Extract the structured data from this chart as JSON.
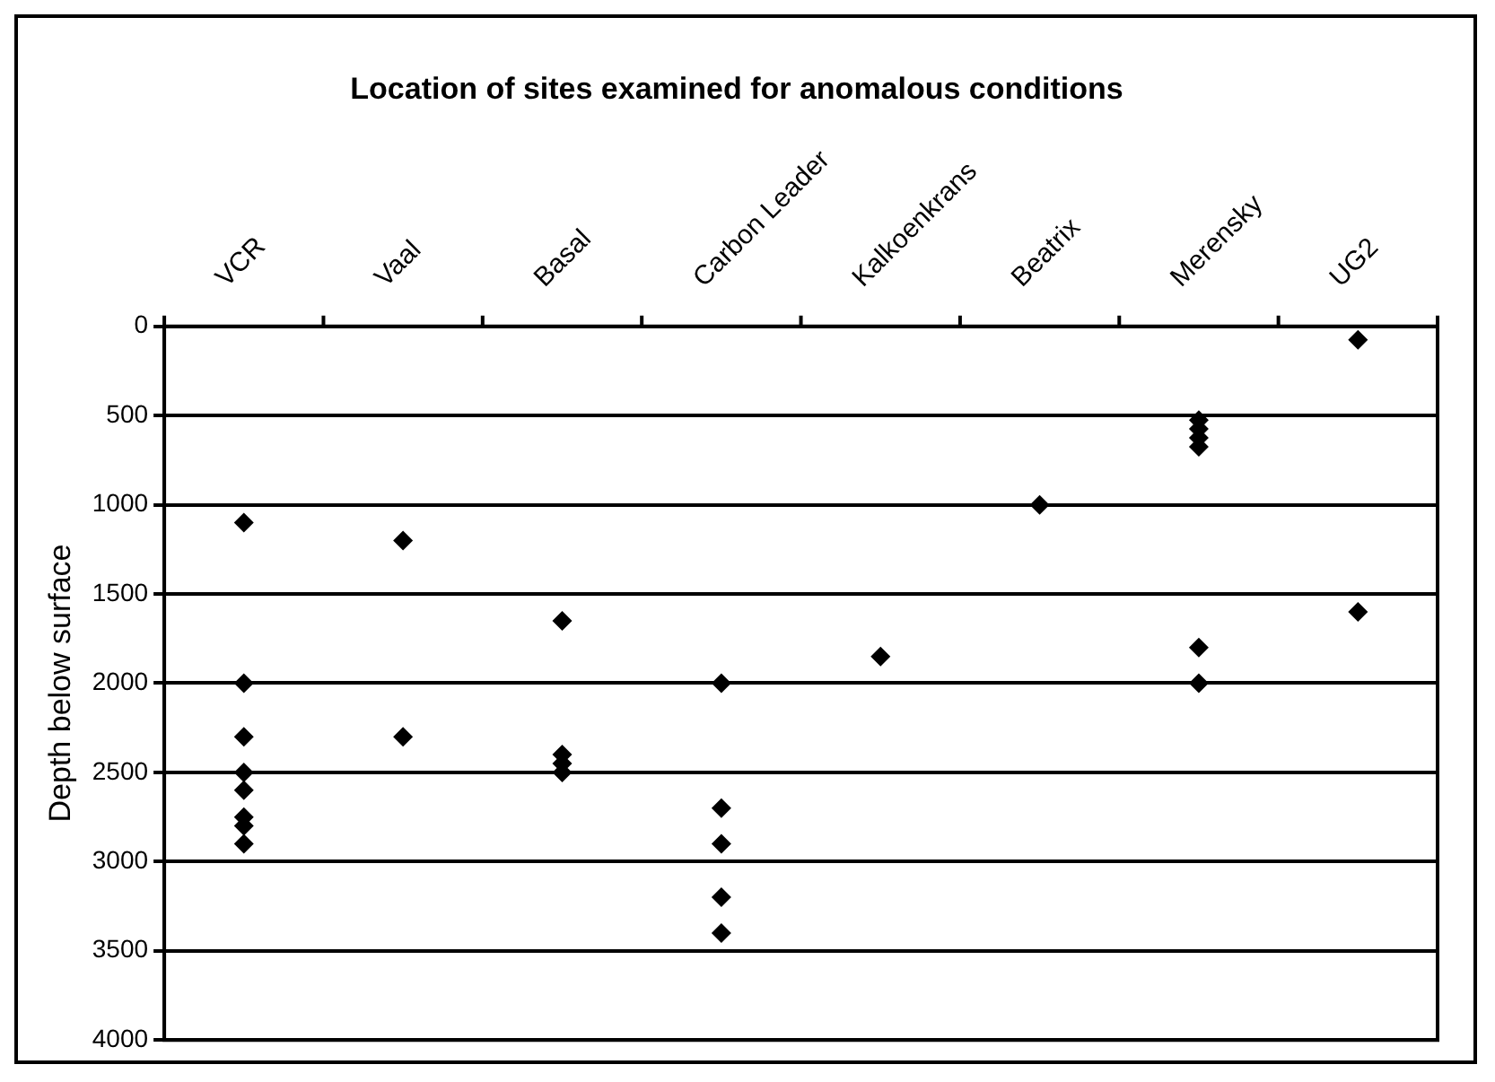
{
  "chart_data": {
    "type": "scatter",
    "title": "Location of sites examined for anomalous conditions",
    "ylabel": "Depth below surface",
    "categories": [
      "VCR",
      "Vaal",
      "Basal",
      "Carbon Leader",
      "Kalkoenkrans",
      "Beatrix",
      "Merensky",
      "UG2"
    ],
    "series": [
      {
        "color": "#000000",
        "x": [
          "VCR",
          "VCR",
          "VCR",
          "VCR",
          "VCR",
          "VCR",
          "VCR",
          "VCR",
          "Vaal",
          "Vaal",
          "Basal",
          "Basal",
          "Basal",
          "Basal",
          "Carbon Leader",
          "Carbon Leader",
          "Carbon Leader",
          "Carbon Leader",
          "Carbon Leader",
          "Kalkoenkrans",
          "Beatrix",
          "Merensky",
          "Merensky",
          "Merensky",
          "Merensky",
          "Merensky",
          "Merensky",
          "UG2",
          "UG2"
        ],
        "values": [
          1100,
          2000,
          2300,
          2500,
          2600,
          2750,
          2800,
          2900,
          1200,
          2300,
          1650,
          2400,
          2450,
          2500,
          2000,
          2700,
          2900,
          3200,
          3400,
          1850,
          1000,
          525,
          575,
          625,
          675,
          1800,
          2000,
          75,
          1600
        ]
      }
    ],
    "ylim": [
      4000,
      0
    ],
    "yticks": [
      0,
      500,
      1000,
      1500,
      2000,
      2500,
      3000,
      3500,
      4000
    ],
    "grid": "y",
    "legend": false,
    "marker": "diamond"
  }
}
